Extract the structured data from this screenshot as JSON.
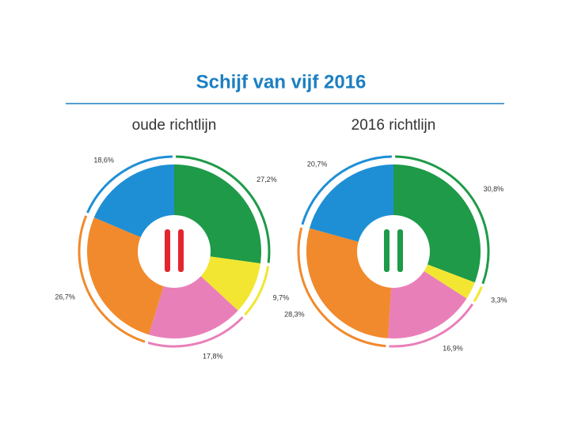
{
  "title": "Schijf van vijf 2016",
  "chart_data": [
    {
      "type": "pie",
      "title": "oude richtlijn",
      "values": [
        27.2,
        9.7,
        17.8,
        26.7,
        18.6
      ],
      "value_labels": [
        "27,2%",
        "9,7%",
        "17,8%",
        "26,7%",
        "18,6%"
      ],
      "colors": [
        "#1e9a48",
        "#f2e632",
        "#e97fb9",
        "#f18a2c",
        "#1e8fd5"
      ]
    },
    {
      "type": "pie",
      "title": "2016 richtlijn",
      "values": [
        30.8,
        3.3,
        16.9,
        28.3,
        20.7
      ],
      "value_labels": [
        "30,8%",
        "3,3%",
        "16,9%",
        "28,3%",
        "20,7%"
      ],
      "colors": [
        "#1e9a48",
        "#f2e632",
        "#e97fb9",
        "#f18a2c",
        "#1e8fd5"
      ]
    }
  ]
}
